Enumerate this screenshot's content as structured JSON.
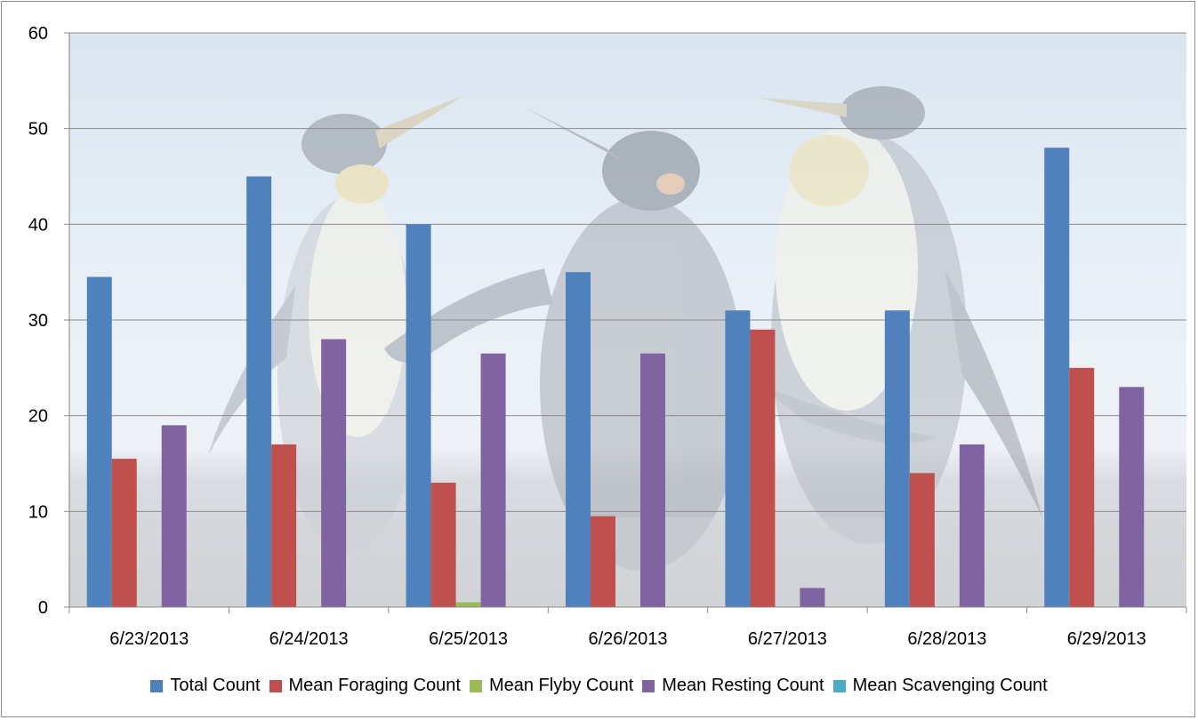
{
  "chart_data": {
    "type": "bar",
    "categories": [
      "6/23/2013",
      "6/24/2013",
      "6/25/2013",
      "6/26/2013",
      "6/27/2013",
      "6/28/2013",
      "6/29/2013"
    ],
    "series": [
      {
        "name": "Total Count",
        "color": "#4f81bd",
        "values": [
          34.5,
          45,
          40,
          35,
          31,
          31,
          48
        ]
      },
      {
        "name": "Mean Foraging Count",
        "color": "#c0504d",
        "values": [
          15.5,
          17,
          13,
          9.5,
          29,
          14,
          25
        ]
      },
      {
        "name": "Mean Flyby Count",
        "color": "#9bbb59",
        "values": [
          0,
          0,
          0.5,
          0,
          0,
          0,
          0
        ]
      },
      {
        "name": "Mean Resting Count",
        "color": "#8064a2",
        "values": [
          19,
          28,
          26.5,
          26.5,
          2,
          17,
          23
        ]
      },
      {
        "name": "Mean Scavenging Count",
        "color": "#4bacc6",
        "values": [
          0,
          0,
          0,
          0,
          0,
          0,
          0
        ]
      }
    ],
    "yticks": [
      "0",
      "10",
      "20",
      "30",
      "40",
      "50",
      "60"
    ],
    "ylim": [
      0,
      60
    ],
    "title": "",
    "xlabel": "",
    "ylabel": "",
    "grid": true,
    "legend_position": "bottom",
    "background": "photo of king penguins (faded)"
  }
}
